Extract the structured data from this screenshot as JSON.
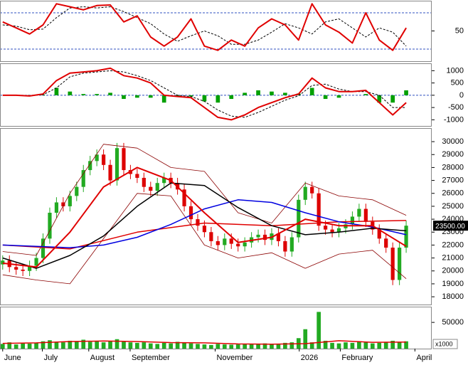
{
  "chart_data": [
    {
      "type": "line",
      "xlim": [
        -0.4,
        63.8
      ],
      "ylim": [
        0,
        100
      ],
      "yticks": [
        50
      ],
      "reference_lines": [
        20,
        80
      ],
      "series": [
        {
          "color": "#000000",
          "style": "dashed",
          "line_width": 1,
          "x": [
            0,
            2,
            4,
            6,
            8,
            10,
            12,
            14,
            16,
            18,
            20,
            22,
            24,
            26,
            28,
            30,
            32,
            34,
            36,
            38,
            40,
            42,
            44,
            46,
            48,
            50,
            52,
            54,
            56,
            58,
            60
          ],
          "values": [
            60,
            58,
            52,
            53,
            72,
            88,
            90,
            88,
            90,
            82,
            72,
            62,
            45,
            33,
            42,
            50,
            42,
            28,
            28,
            35,
            48,
            62,
            55,
            45,
            65,
            70,
            55,
            40,
            55,
            48,
            25
          ]
        },
        {
          "color": "#e00000",
          "style": "line",
          "line_width": 2,
          "x": [
            0,
            2,
            4,
            6,
            8,
            10,
            12,
            14,
            16,
            18,
            20,
            22,
            24,
            26,
            28,
            30,
            32,
            34,
            36,
            38,
            40,
            42,
            44,
            46,
            48,
            50,
            52,
            54,
            56,
            58,
            60
          ],
          "values": [
            65,
            55,
            45,
            60,
            95,
            90,
            85,
            92,
            93,
            65,
            75,
            40,
            25,
            40,
            70,
            25,
            18,
            35,
            25,
            55,
            70,
            60,
            35,
            95,
            60,
            48,
            30,
            80,
            35,
            18,
            55
          ]
        }
      ]
    },
    {
      "type": "line",
      "xlim": [
        -0.4,
        63.8
      ],
      "ylim": [
        -1250,
        1300
      ],
      "yticks": [
        -1000,
        -500,
        0,
        500,
        1000
      ],
      "reference_lines": [
        0
      ],
      "series": [
        {
          "color": "#00a000",
          "style": "bar",
          "x": [
            0,
            2,
            4,
            6,
            8,
            10,
            12,
            14,
            16,
            18,
            20,
            22,
            24,
            26,
            28,
            30,
            32,
            34,
            36,
            38,
            40,
            42,
            44,
            46,
            48,
            50,
            52,
            54,
            56,
            58,
            60
          ],
          "values": [
            0,
            0,
            -20,
            30,
            300,
            150,
            50,
            50,
            100,
            -150,
            -100,
            -100,
            -300,
            -50,
            -50,
            -250,
            -300,
            -150,
            100,
            200,
            150,
            100,
            70,
            300,
            -150,
            -100,
            0,
            50,
            -300,
            -300,
            200
          ]
        },
        {
          "color": "#000000",
          "style": "dashed",
          "line_width": 1,
          "x": [
            0,
            2,
            4,
            6,
            8,
            10,
            12,
            14,
            16,
            18,
            20,
            22,
            24,
            26,
            28,
            30,
            32,
            34,
            36,
            38,
            40,
            42,
            44,
            46,
            48,
            50,
            52,
            54,
            56,
            58,
            60
          ],
          "values": [
            0,
            0,
            -10,
            20,
            300,
            750,
            900,
            950,
            1000,
            950,
            800,
            600,
            300,
            0,
            -50,
            -250,
            -600,
            -850,
            -900,
            -700,
            -450,
            -200,
            -20,
            400,
            450,
            250,
            150,
            150,
            0,
            -500,
            -500
          ]
        },
        {
          "color": "#e00000",
          "style": "line",
          "line_width": 2,
          "x": [
            0,
            2,
            4,
            6,
            8,
            10,
            12,
            14,
            16,
            18,
            20,
            22,
            24,
            26,
            28,
            30,
            32,
            34,
            36,
            38,
            40,
            42,
            44,
            46,
            48,
            50,
            52,
            54,
            56,
            58,
            60
          ],
          "values": [
            0,
            0,
            -30,
            50,
            600,
            900,
            950,
            1000,
            1100,
            800,
            700,
            500,
            0,
            -50,
            -100,
            -500,
            -900,
            -1000,
            -800,
            -500,
            -300,
            -100,
            50,
            700,
            300,
            150,
            150,
            200,
            -300,
            -800,
            -300
          ]
        }
      ]
    },
    {
      "type": "candlestick",
      "xlim": [
        -0.4,
        63.8
      ],
      "ylim": [
        17400,
        31050
      ],
      "yticks": [
        18000,
        19000,
        20000,
        21000,
        22000,
        23000,
        24000,
        25000,
        26000,
        27000,
        28000,
        29000,
        30000
      ],
      "last_price": {
        "value": 23500,
        "label": "23500.00"
      },
      "candles": {
        "up_color": "#22aa22",
        "down_color": "#dd0000",
        "x": [
          0,
          1,
          2,
          3,
          4,
          5,
          6,
          7,
          8,
          9,
          10,
          11,
          12,
          13,
          14,
          15,
          16,
          17,
          18,
          19,
          20,
          21,
          22,
          23,
          24,
          25,
          26,
          27,
          28,
          29,
          30,
          31,
          32,
          33,
          34,
          35,
          36,
          37,
          38,
          39,
          40,
          41,
          42,
          43,
          44,
          45,
          46,
          47,
          48,
          49,
          50,
          51,
          52,
          53,
          54,
          55,
          56,
          57,
          58,
          59,
          60
        ],
        "open": [
          20500,
          20800,
          20300,
          20100,
          20000,
          20400,
          21000,
          22500,
          24500,
          25300,
          25000,
          25800,
          26500,
          27800,
          28500,
          29000,
          28200,
          27000,
          29500,
          27800,
          27500,
          27200,
          26500,
          26200,
          26800,
          27200,
          26800,
          26300,
          25000,
          24000,
          23500,
          23000,
          22300,
          22000,
          22500,
          22100,
          21900,
          22200,
          22600,
          22800,
          22400,
          22900,
          22300,
          21500,
          22600,
          25500,
          26500,
          26000,
          23500,
          23200,
          23000,
          23300,
          23600,
          24200,
          24800,
          23800,
          23200,
          22500,
          21800,
          19300,
          21800
        ],
        "high": [
          21200,
          21200,
          20700,
          20500,
          20800,
          21400,
          22900,
          24900,
          25700,
          25700,
          26200,
          26900,
          28200,
          28900,
          29400,
          29400,
          28600,
          29900,
          29900,
          28200,
          27900,
          27600,
          26900,
          27200,
          27600,
          27600,
          27200,
          26700,
          25400,
          24400,
          23900,
          23400,
          22700,
          22900,
          22900,
          22500,
          22600,
          23000,
          23200,
          23200,
          23300,
          23300,
          22700,
          23000,
          25900,
          26900,
          26900,
          26400,
          23900,
          23600,
          23700,
          24000,
          24600,
          25200,
          25200,
          24200,
          23600,
          22900,
          22200,
          22200,
          23900
        ],
        "low": [
          20100,
          19900,
          19700,
          19600,
          19600,
          20000,
          20600,
          22100,
          24100,
          24600,
          24600,
          25400,
          26100,
          27400,
          28100,
          27800,
          26600,
          26600,
          27400,
          27100,
          26800,
          26100,
          25800,
          25800,
          26400,
          26400,
          25900,
          24600,
          23600,
          23100,
          22600,
          21900,
          21600,
          21600,
          21700,
          21500,
          21500,
          21800,
          22200,
          22000,
          22000,
          21900,
          21100,
          21100,
          22200,
          25100,
          25600,
          23100,
          22800,
          22600,
          22600,
          22900,
          23200,
          23800,
          23400,
          22800,
          22100,
          21400,
          18900,
          18900,
          21400
        ],
        "close": [
          20800,
          20300,
          20100,
          20000,
          20400,
          21000,
          22500,
          24500,
          25300,
          25000,
          25800,
          26500,
          27800,
          28500,
          29000,
          28200,
          27000,
          29500,
          27800,
          27500,
          27200,
          26500,
          26200,
          26800,
          27200,
          26800,
          26300,
          25000,
          24000,
          23500,
          23000,
          22300,
          22000,
          22500,
          22100,
          21900,
          22200,
          22600,
          22800,
          22400,
          22900,
          22300,
          21500,
          22600,
          25500,
          26500,
          26000,
          23500,
          23200,
          23000,
          23300,
          23600,
          24200,
          24800,
          23800,
          23200,
          22500,
          21800,
          19300,
          21800,
          23500
        ]
      },
      "series": [
        {
          "color": "#8b0000",
          "style": "line",
          "line_width": 0.8,
          "x": [
            0,
            5,
            10,
            15,
            20,
            25,
            30,
            35,
            40,
            45,
            50,
            55,
            60
          ],
          "values": [
            21500,
            21200,
            26000,
            29800,
            29500,
            28000,
            27700,
            24500,
            23700,
            26800,
            25800,
            25500,
            24300
          ]
        },
        {
          "color": "#8b0000",
          "style": "line",
          "line_width": 0.8,
          "x": [
            0,
            5,
            10,
            15,
            20,
            25,
            30,
            35,
            40,
            45,
            50,
            55,
            60
          ],
          "values": [
            19700,
            19300,
            19000,
            22500,
            26000,
            25800,
            22000,
            21000,
            21400,
            20200,
            21300,
            21600,
            19400
          ]
        },
        {
          "color": "#e00000",
          "style": "line",
          "line_width": 1.5,
          "x": [
            0,
            10,
            20,
            30,
            40,
            50,
            60
          ],
          "values": [
            22000,
            21700,
            23000,
            23700,
            23500,
            23800,
            23900
          ]
        },
        {
          "color": "#0000e0",
          "style": "line",
          "line_width": 1.5,
          "x": [
            0,
            5,
            10,
            15,
            20,
            25,
            30,
            35,
            40,
            45,
            50,
            55,
            60
          ],
          "values": [
            22000,
            21900,
            21800,
            22000,
            22600,
            23600,
            24800,
            25500,
            25300,
            24500,
            23800,
            23400,
            22800
          ]
        },
        {
          "color": "#000000",
          "style": "line",
          "line_width": 1.5,
          "x": [
            0,
            5,
            10,
            15,
            20,
            25,
            30,
            35,
            40,
            45,
            50,
            55,
            60
          ],
          "values": [
            21000,
            20200,
            21200,
            22700,
            25000,
            26800,
            26600,
            24900,
            23500,
            22800,
            23000,
            23300,
            23100
          ]
        },
        {
          "color": "#e00000",
          "style": "line",
          "line_width": 2,
          "x": [
            0,
            5,
            10,
            15,
            20,
            25,
            30,
            35,
            40,
            45,
            50,
            55,
            60
          ],
          "values": [
            20600,
            20300,
            23000,
            26500,
            28000,
            27000,
            24500,
            22200,
            22600,
            24000,
            23500,
            23500,
            21900
          ]
        }
      ]
    },
    {
      "type": "bar",
      "xlim": [
        -0.4,
        63.8
      ],
      "ylim": [
        0,
        80000
      ],
      "yticks": [
        50000
      ],
      "unit_label": "x1000",
      "xticks": [
        {
          "value": 0,
          "label": "June"
        },
        {
          "value": 5.9,
          "label": "July"
        },
        {
          "value": 12.8,
          "label": "August"
        },
        {
          "value": 18.95,
          "label": "September"
        },
        {
          "value": 31.6,
          "label": "November"
        },
        {
          "value": 44.1,
          "label": "2026"
        },
        {
          "value": 50.2,
          "label": "February"
        },
        {
          "value": 61.3,
          "label": "April"
        }
      ],
      "series": [
        {
          "color": "#22aa22",
          "style": "bar",
          "x": [
            0,
            1,
            2,
            3,
            4,
            5,
            6,
            7,
            8,
            9,
            10,
            11,
            12,
            13,
            14,
            15,
            16,
            17,
            18,
            19,
            20,
            21,
            22,
            23,
            24,
            25,
            26,
            27,
            28,
            29,
            30,
            31,
            32,
            33,
            34,
            35,
            36,
            37,
            38,
            39,
            40,
            41,
            42,
            43,
            44,
            45,
            46,
            47,
            48,
            49,
            50,
            51,
            52,
            53,
            54,
            55,
            56,
            57,
            58,
            59,
            60
          ],
          "values": [
            9000,
            12000,
            8000,
            10000,
            9500,
            11000,
            14000,
            16000,
            13000,
            12000,
            15000,
            14000,
            17000,
            13000,
            15000,
            12000,
            14000,
            18000,
            13000,
            12000,
            11000,
            12000,
            10000,
            9000,
            11000,
            10000,
            13000,
            11000,
            10000,
            9000,
            8000,
            7000,
            9000,
            8000,
            7500,
            8000,
            9000,
            8500,
            9000,
            10000,
            9500,
            8000,
            11000,
            12000,
            20000,
            37000,
            12000,
            70000,
            15000,
            11000,
            10000,
            12000,
            11000,
            14000,
            12000,
            10000,
            11000,
            13000,
            15000,
            12000,
            14000
          ]
        },
        {
          "color": "#e00000",
          "style": "line",
          "line_width": 1.5,
          "x": [
            0,
            5,
            10,
            15,
            20,
            25,
            30,
            35,
            40,
            45,
            50,
            55,
            60
          ],
          "values": [
            10000,
            11000,
            13500,
            14500,
            13500,
            11500,
            11000,
            9000,
            8500,
            9500,
            15000,
            12000,
            12500
          ]
        }
      ]
    }
  ]
}
